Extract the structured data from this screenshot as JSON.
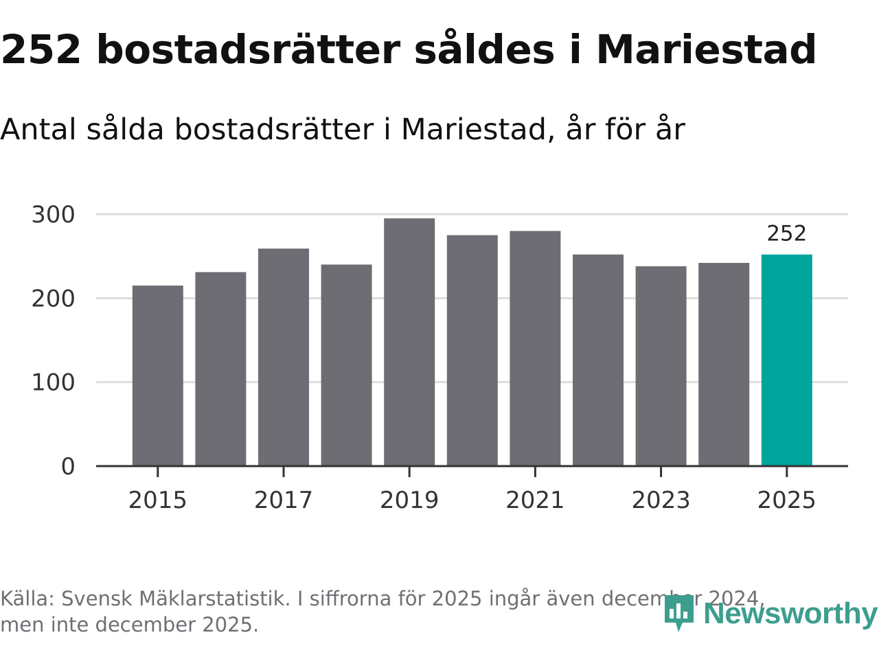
{
  "title": "252 bostadsrätter såldes i Mariestad",
  "subtitle": "Antal sålda bostadsrätter i Mariestad, år för år",
  "chart_data": {
    "type": "bar",
    "categories": [
      "2015",
      "2016",
      "2017",
      "2018",
      "2019",
      "2020",
      "2021",
      "2022",
      "2023",
      "2024",
      "2025"
    ],
    "values": [
      215,
      231,
      259,
      240,
      295,
      275,
      280,
      252,
      238,
      242,
      252
    ],
    "x_tick_labels": [
      "2015",
      "2017",
      "2019",
      "2021",
      "2023",
      "2025"
    ],
    "y_ticks": [
      0,
      100,
      200,
      300
    ],
    "ylim": [
      0,
      300
    ],
    "highlight": {
      "category": "2025",
      "label": "252"
    },
    "grid": true,
    "colors": {
      "bar": "#6e6d74",
      "highlight": "#00a59b",
      "grid": "#dddddd",
      "axis": "#333333"
    }
  },
  "footer": {
    "line1": "Källa: Svensk Mäklarstatistik. I siffrorna för 2025 ingår även december 2024,",
    "line2": "men inte december 2025."
  },
  "logo": {
    "text": "Newsworthy",
    "icon": "newsworthy-bar-chart-icon",
    "color": "#3d9e8e"
  }
}
